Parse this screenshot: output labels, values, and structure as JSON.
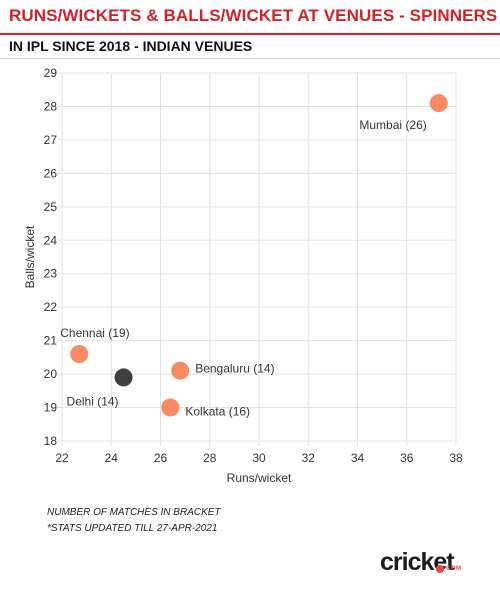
{
  "header": {
    "title": "RUNS/WICKETS & BALLS/WICKET AT VENUES - SPINNERS",
    "subtitle": "IN IPL SINCE 2018 - INDIAN VENUES"
  },
  "chart_data": {
    "type": "scatter",
    "xlabel": "Runs/wicket",
    "ylabel": "Balls/wicket",
    "xlim": [
      22,
      38
    ],
    "ylim": [
      18,
      29
    ],
    "xticks": [
      22,
      24,
      26,
      28,
      30,
      32,
      34,
      36,
      38
    ],
    "yticks": [
      18,
      19,
      20,
      21,
      22,
      23,
      24,
      25,
      26,
      27,
      28,
      29
    ],
    "grid": true,
    "colors": {
      "default": "#f98a64",
      "highlight": "#3f3f3f"
    },
    "points": [
      {
        "label": "Mumbai (26)",
        "x": 37.3,
        "y": 28.1,
        "highlight": false
      },
      {
        "label": "Chennai (19)",
        "x": 22.7,
        "y": 20.6,
        "highlight": false
      },
      {
        "label": "Bengaluru (14)",
        "x": 26.8,
        "y": 20.1,
        "highlight": false
      },
      {
        "label": "Delhi (14)",
        "x": 24.5,
        "y": 19.9,
        "highlight": true
      },
      {
        "label": "Kolkata (16)",
        "x": 26.4,
        "y": 19.0,
        "highlight": false
      }
    ]
  },
  "notes": {
    "line1": "NUMBER OF MATCHES IN BRACKET",
    "line2": "*STATS UPDATED TILL 27-APR-2021"
  },
  "logo": {
    "word": "cricket",
    "suffix": "COM"
  }
}
